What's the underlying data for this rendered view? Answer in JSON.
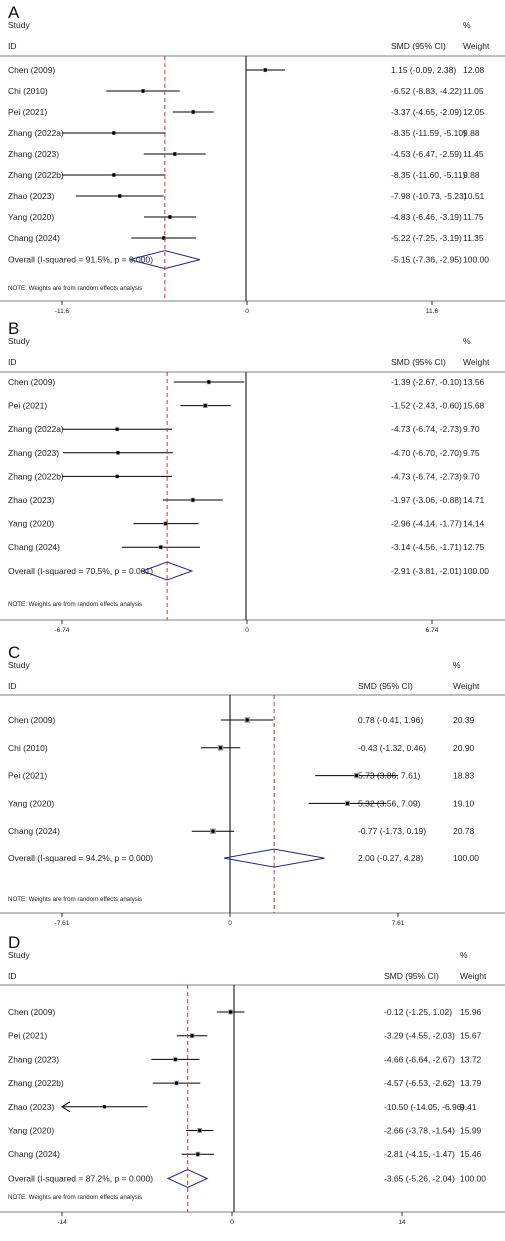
{
  "chart_data": [
    {
      "type": "forest",
      "panel": "A",
      "headers": {
        "study": "Study",
        "id": "ID",
        "effect": "SMD (95% CI)",
        "pct": "%",
        "weight": "Weight"
      },
      "studies": [
        {
          "name": "Chen (2009)",
          "es": 1.15,
          "lo": -0.09,
          "hi": 2.38,
          "ci_text": "1.15 (-0.09, 2.38)",
          "weight": "12.08"
        },
        {
          "name": "Chi  (2010)",
          "es": -6.52,
          "lo": -8.83,
          "hi": -4.22,
          "ci_text": "-6.52 (-8.83, -4.22)",
          "weight": "11.05"
        },
        {
          "name": "Pei  (2021)",
          "es": -3.37,
          "lo": -4.65,
          "hi": -2.09,
          "ci_text": "-3.37 (-4.65, -2.09)",
          "weight": "12.05"
        },
        {
          "name": "Zhang  (2022a)",
          "es": -8.35,
          "lo": -11.59,
          "hi": -5.1,
          "ci_text": "-8.35 (-11.59, -5.10)",
          "weight": "9.88"
        },
        {
          "name": "Zhang  (2023)",
          "es": -4.53,
          "lo": -6.47,
          "hi": -2.59,
          "ci_text": "-4.53 (-6.47, -2.59)",
          "weight": "11.45"
        },
        {
          "name": "Zhang (2022b)",
          "es": -8.35,
          "lo": -11.6,
          "hi": -5.11,
          "ci_text": "-8.35 (-11.60, -5.11)",
          "weight": "9.88"
        },
        {
          "name": "Zhao  (2023)",
          "es": -7.98,
          "lo": -10.73,
          "hi": -5.23,
          "ci_text": "-7.98 (-10.73, -5.23)",
          "weight": "10.51"
        },
        {
          "name": "Yang  (2020)",
          "es": -4.83,
          "lo": -6.46,
          "hi": -3.19,
          "ci_text": "-4.83 (-6.46, -3.19)",
          "weight": "11.75"
        },
        {
          "name": "Chang  (2024)",
          "es": -5.22,
          "lo": -7.25,
          "hi": -3.19,
          "ci_text": "-5.22 (-7.25, -3.19)",
          "weight": "11.35"
        }
      ],
      "overall": {
        "label": "Overall  (I-squared = 91.5%, p = 0.000)",
        "es": -5.15,
        "lo": -7.36,
        "hi": -2.95,
        "ci_text": "-5.15 (-7.36, -2.95)",
        "weight": "100.00"
      },
      "note": "NOTE: Weights are from random effects analysis",
      "axis": {
        "min": -11.6,
        "max": 11.6,
        "ticks": [
          -11.6,
          0,
          11.6
        ],
        "tick_labels": [
          "-11.6",
          "0",
          "11.6"
        ]
      }
    },
    {
      "type": "forest",
      "panel": "B",
      "headers": {
        "study": "Study",
        "id": "ID",
        "effect": "SMD (95% CI)",
        "pct": "%",
        "weight": "Weight"
      },
      "studies": [
        {
          "name": "Chen  (2009)",
          "es": -1.39,
          "lo": -2.67,
          "hi": -0.1,
          "ci_text": "-1.39 (-2.67, -0.10)",
          "weight": "13.56"
        },
        {
          "name": "Pei  (2021)",
          "es": -1.52,
          "lo": -2.43,
          "hi": -0.6,
          "ci_text": "-1.52 (-2.43, -0.60)",
          "weight": "15.68"
        },
        {
          "name": "Zhang  (2022a)",
          "es": -4.73,
          "lo": -6.74,
          "hi": -2.73,
          "ci_text": "-4.73 (-6.74, -2.73)",
          "weight": "9.70"
        },
        {
          "name": "Zhang  (2023)",
          "es": -4.7,
          "lo": -6.7,
          "hi": -2.7,
          "ci_text": "-4.70 (-6.70, -2.70)",
          "weight": "9.75"
        },
        {
          "name": "Zhang  (2022b)",
          "es": -4.73,
          "lo": -6.74,
          "hi": -2.73,
          "ci_text": "-4.73 (-6.74, -2.73)",
          "weight": "9.70"
        },
        {
          "name": "Zhao (2023)",
          "es": -1.97,
          "lo": -3.06,
          "hi": -0.88,
          "ci_text": "-1.97 (-3.06, -0.88)",
          "weight": "14.71"
        },
        {
          "name": "Yang  (2020)",
          "es": -2.96,
          "lo": -4.14,
          "hi": -1.77,
          "ci_text": "-2.96 (-4.14, -1.77)",
          "weight": "14.14"
        },
        {
          "name": "Chang  (2024)",
          "es": -3.14,
          "lo": -4.56,
          "hi": -1.71,
          "ci_text": "-3.14 (-4.56, -1.71)",
          "weight": "12.75"
        }
      ],
      "overall": {
        "label": "Overall  (I-squared = 70.5%, p = 0.001)",
        "es": -2.91,
        "lo": -3.81,
        "hi": -2.01,
        "ci_text": "-2.91 (-3.81, -2.01)",
        "weight": "100.00"
      },
      "note": "NOTE: Weights are from random effects analysis",
      "axis": {
        "min": -6.74,
        "max": 6.74,
        "ticks": [
          -6.74,
          0,
          6.74
        ],
        "tick_labels": [
          "-6.74",
          "0",
          "6.74"
        ]
      }
    },
    {
      "type": "forest",
      "panel": "C",
      "headers": {
        "study": "Study",
        "id": "ID",
        "effect": "SMD (95% CI)",
        "pct": "%",
        "weight": "Weight"
      },
      "studies": [
        {
          "name": "Chen (2009)",
          "es": 0.78,
          "lo": -0.41,
          "hi": 1.96,
          "ci_text": "0.78 (-0.41, 1.96)",
          "weight": "20.39"
        },
        {
          "name": "Chi  (2010)",
          "es": -0.43,
          "lo": -1.32,
          "hi": 0.46,
          "ci_text": "-0.43 (-1.32, 0.46)",
          "weight": "20.90"
        },
        {
          "name": "Pei  (2021)",
          "es": 5.73,
          "lo": 3.86,
          "hi": 7.61,
          "ci_text": "5.73 (3.86, 7.61)",
          "weight": "18.83"
        },
        {
          "name": "Yang  (2020)",
          "es": 5.32,
          "lo": 3.56,
          "hi": 7.09,
          "ci_text": "5.32 (3.56, 7.09)",
          "weight": "19.10"
        },
        {
          "name": "Chang  (2024)",
          "es": -0.77,
          "lo": -1.73,
          "hi": 0.19,
          "ci_text": "-0.77 (-1.73, 0.19)",
          "weight": "20.78"
        }
      ],
      "overall": {
        "label": "Overall  (I-squared = 94.2%, p = 0.000)",
        "es": 2.0,
        "lo": -0.27,
        "hi": 4.28,
        "ci_text": "2.00 (-0.27, 4.28)",
        "weight": "100.00"
      },
      "note": "NOTE: Weights are from random effects analysis",
      "axis": {
        "min": -7.61,
        "max": 7.61,
        "ticks": [
          -7.61,
          0,
          7.61
        ],
        "tick_labels": [
          "-7.61",
          "0",
          "7.61"
        ]
      }
    },
    {
      "type": "forest",
      "panel": "D",
      "headers": {
        "study": "Study",
        "id": "ID",
        "effect": "SMD (95% CI)",
        "pct": "%",
        "weight": "Weight"
      },
      "studies": [
        {
          "name": "Chen (2009)",
          "es": -0.12,
          "lo": -1.25,
          "hi": 1.02,
          "ci_text": "-0.12 (-1.25, 1.02)",
          "weight": "15.96"
        },
        {
          "name": "Pei  (2021)",
          "es": -3.29,
          "lo": -4.55,
          "hi": -2.03,
          "ci_text": "-3.29 (-4.55, -2.03)",
          "weight": "15.67"
        },
        {
          "name": "Zhang  (2023)",
          "es": -4.66,
          "lo": -6.64,
          "hi": -2.67,
          "ci_text": "-4.66 (-6.64, -2.67)",
          "weight": "13.72"
        },
        {
          "name": "Zhang  (2022b)",
          "es": -4.57,
          "lo": -6.53,
          "hi": -2.62,
          "ci_text": "-4.57 (-6.53, -2.62)",
          "weight": "13.79"
        },
        {
          "name": "Zhao (2023)",
          "es": -10.5,
          "lo": -14.05,
          "hi": -6.96,
          "ci_text": "-10.50 (-14.05, -6.96)",
          "weight": "9.41"
        },
        {
          "name": "Yang  (2020)",
          "es": -2.66,
          "lo": -3.78,
          "hi": -1.54,
          "ci_text": "-2.66 (-3.78, -1.54)",
          "weight": "15.99"
        },
        {
          "name": "Chang  (2024)",
          "es": -2.81,
          "lo": -4.15,
          "hi": -1.47,
          "ci_text": "-2.81 (-4.15, -1.47)",
          "weight": "15.46"
        }
      ],
      "overall": {
        "label": "Overall  (I-squared = 87.2%, p = 0.000)",
        "es": -3.65,
        "lo": -5.26,
        "hi": -2.04,
        "ci_text": "-3.65 (-5.26, -2.04)",
        "weight": "100.00"
      },
      "note": "NOTE: Weights are from random effects analysis",
      "axis": {
        "min": -14,
        "max": 14,
        "ticks": [
          -14,
          0,
          14
        ],
        "tick_labels": [
          "-14",
          "0",
          "14"
        ]
      }
    }
  ]
}
